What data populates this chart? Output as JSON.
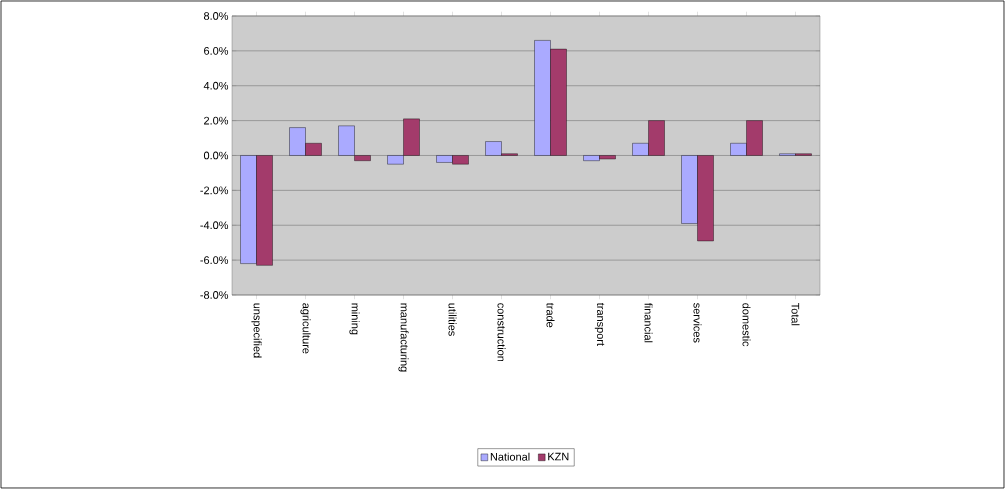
{
  "chart_data": {
    "type": "bar",
    "categories": [
      "unspecified",
      "agriculture",
      "mining",
      "manufacturing",
      "utilities",
      "construction",
      "trade",
      "transport",
      "financial",
      "services",
      "domestic",
      "Total"
    ],
    "series": [
      {
        "name": "National",
        "color": "#aaaaff",
        "values": [
          -6.2,
          1.6,
          1.7,
          -0.5,
          -0.4,
          0.8,
          6.6,
          -0.3,
          0.7,
          -3.9,
          0.7,
          0.1
        ]
      },
      {
        "name": "KZN",
        "color": "#a33b6b",
        "values": [
          -6.3,
          0.7,
          -0.3,
          2.1,
          -0.5,
          0.1,
          6.1,
          -0.2,
          2.0,
          -4.9,
          2.0,
          0.1
        ]
      }
    ],
    "ylim": [
      -8,
      8
    ],
    "yticks": [
      {
        "value": -8,
        "label": "-8.0%"
      },
      {
        "value": -6,
        "label": "-6.0%"
      },
      {
        "value": -4,
        "label": "-4.0%"
      },
      {
        "value": -2,
        "label": "-2.0%"
      },
      {
        "value": 0,
        "label": "0.0%"
      },
      {
        "value": 2,
        "label": "2.0%"
      },
      {
        "value": 4,
        "label": "4.0%"
      },
      {
        "value": 6,
        "label": "6.0%"
      },
      {
        "value": 8,
        "label": "8.0%"
      }
    ],
    "grid": "y",
    "legend": "bottom"
  }
}
